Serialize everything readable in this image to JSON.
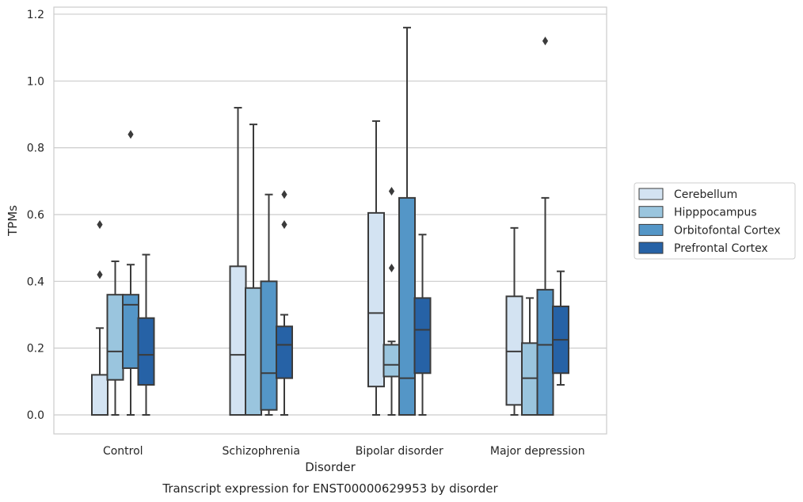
{
  "chart_data": {
    "type": "box",
    "title": "",
    "caption": "Transcript expression for ENST00000629953 by disorder",
    "xlabel": "Disorder",
    "ylabel": "TPMs",
    "ylim": [
      -0.055,
      1.225
    ],
    "yticks": [
      "0.0",
      "0.2",
      "0.4",
      "0.6",
      "0.8",
      "1.0",
      "1.2"
    ],
    "grid": "horizontal",
    "legend_position": "center-right",
    "categories": [
      "Control",
      "Schizophrenia",
      "Bipolar disorder",
      "Major depression"
    ],
    "series": [
      {
        "name": "Cerebellum",
        "color": "#d3e3f2",
        "boxes": [
          {
            "min": 0.0,
            "q1": 0.0,
            "median": 0.0,
            "q3": 0.12,
            "max": 0.26,
            "outliers": [
              0.42,
              0.57
            ]
          },
          {
            "min": 0.0,
            "q1": 0.0,
            "median": 0.18,
            "q3": 0.445,
            "max": 0.92,
            "outliers": []
          },
          {
            "min": 0.0,
            "q1": 0.085,
            "median": 0.305,
            "q3": 0.605,
            "max": 0.88,
            "outliers": []
          },
          {
            "min": 0.0,
            "q1": 0.03,
            "median": 0.19,
            "q3": 0.355,
            "max": 0.56,
            "outliers": []
          }
        ]
      },
      {
        "name": "Hipppocampus",
        "color": "#9ac5de",
        "boxes": [
          {
            "min": 0.0,
            "q1": 0.105,
            "median": 0.19,
            "q3": 0.36,
            "max": 0.46,
            "outliers": []
          },
          {
            "min": 0.0,
            "q1": 0.0,
            "median": 0.0,
            "q3": 0.38,
            "max": 0.87,
            "outliers": []
          },
          {
            "min": 0.0,
            "q1": 0.115,
            "median": 0.15,
            "q3": 0.21,
            "max": 0.22,
            "outliers": [
              0.44,
              0.67
            ]
          },
          {
            "min": 0.0,
            "q1": 0.0,
            "median": 0.11,
            "q3": 0.215,
            "max": 0.35,
            "outliers": []
          }
        ]
      },
      {
        "name": "Orbitofontal Cortex",
        "color": "#5496c7",
        "boxes": [
          {
            "min": 0.0,
            "q1": 0.14,
            "median": 0.33,
            "q3": 0.36,
            "max": 0.45,
            "outliers": [
              0.84
            ]
          },
          {
            "min": 0.0,
            "q1": 0.015,
            "median": 0.125,
            "q3": 0.4,
            "max": 0.66,
            "outliers": []
          },
          {
            "min": 0.0,
            "q1": 0.0,
            "median": 0.11,
            "q3": 0.65,
            "max": 1.16,
            "outliers": []
          },
          {
            "min": 0.0,
            "q1": 0.0,
            "median": 0.21,
            "q3": 0.375,
            "max": 0.65,
            "outliers": [
              1.12
            ]
          }
        ]
      },
      {
        "name": "Prefrontal Cortex",
        "color": "#2662a6",
        "boxes": [
          {
            "min": 0.0,
            "q1": 0.09,
            "median": 0.18,
            "q3": 0.29,
            "max": 0.48,
            "outliers": []
          },
          {
            "min": 0.0,
            "q1": 0.11,
            "median": 0.21,
            "q3": 0.265,
            "max": 0.3,
            "outliers": [
              0.57,
              0.66
            ]
          },
          {
            "min": 0.0,
            "q1": 0.125,
            "median": 0.255,
            "q3": 0.35,
            "max": 0.54,
            "outliers": []
          },
          {
            "min": 0.09,
            "q1": 0.125,
            "median": 0.225,
            "q3": 0.325,
            "max": 0.43,
            "outliers": []
          }
        ]
      }
    ]
  }
}
